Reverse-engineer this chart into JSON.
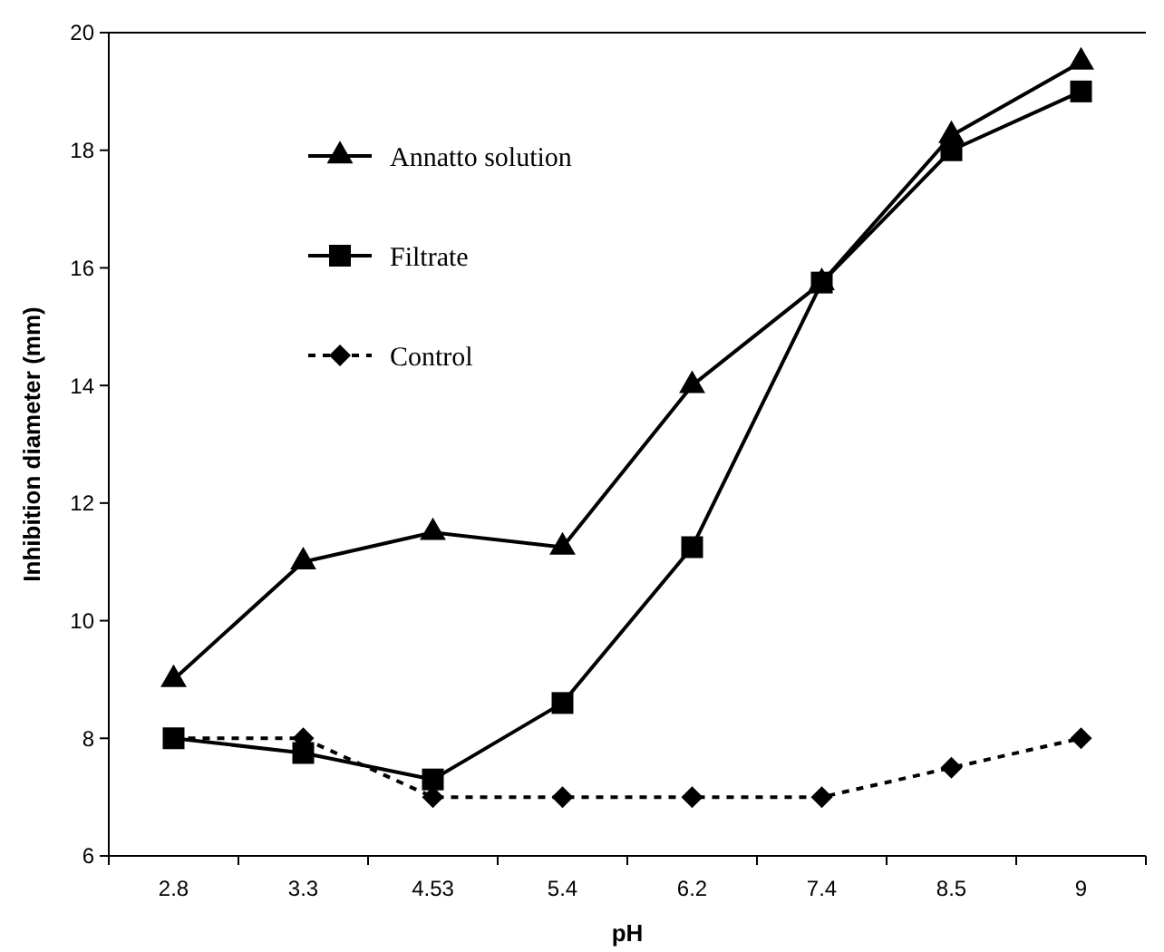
{
  "chart_data": {
    "type": "line",
    "xlabel": "pH",
    "ylabel": "Inhibition diameter (mm)",
    "categories": [
      "2.8",
      "3.3",
      "4.53",
      "5.4",
      "6.2",
      "7.4",
      "8.5",
      "9"
    ],
    "ylim": [
      6,
      20
    ],
    "yticks": [
      6,
      8,
      10,
      12,
      14,
      16,
      18,
      20
    ],
    "grid": false,
    "legend": "top left",
    "series": [
      {
        "name": "Annatto solution",
        "color": "#000000",
        "marker": "triangle",
        "line_style": "solid",
        "values": [
          9,
          11,
          11.5,
          11.25,
          14,
          15.75,
          18.25,
          19.5
        ]
      },
      {
        "name": "Filtrate",
        "color": "#000000",
        "marker": "square",
        "line_style": "solid",
        "values": [
          8,
          7.75,
          7.3,
          8.6,
          11.25,
          15.75,
          18,
          19
        ]
      },
      {
        "name": "Control",
        "color": "#000000",
        "marker": "diamond",
        "line_style": "dotted",
        "values": [
          8,
          8,
          7,
          7,
          7,
          7,
          7.5,
          8
        ]
      }
    ]
  }
}
